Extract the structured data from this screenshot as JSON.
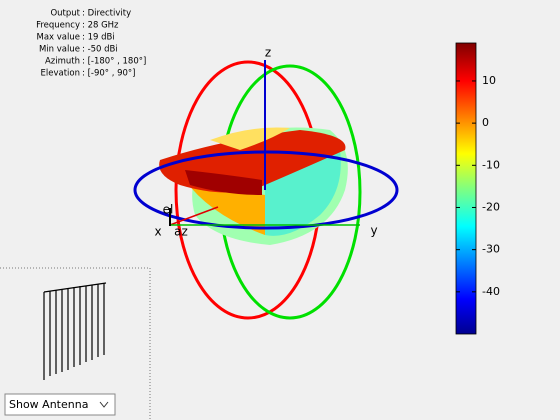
{
  "info": {
    "rows": [
      [
        "Output",
        ": Directivity"
      ],
      [
        "Frequency",
        ": 28 GHz"
      ],
      [
        "Max value",
        ": 19 dBi"
      ],
      [
        "Min value",
        ": -50 dBi"
      ],
      [
        "Azimuth",
        ": [-180° , 180°]"
      ],
      [
        "Elevation",
        ": [-90° , 90°]"
      ]
    ]
  },
  "axes": {
    "x": "x",
    "y": "y",
    "z": "z",
    "az": "az",
    "el": "el"
  },
  "colorbar": {
    "lim": [
      -50,
      19
    ],
    "ticks": [
      10,
      0,
      -10,
      -20,
      -30,
      -40
    ]
  },
  "control": {
    "selected": "Show Antenna"
  }
}
